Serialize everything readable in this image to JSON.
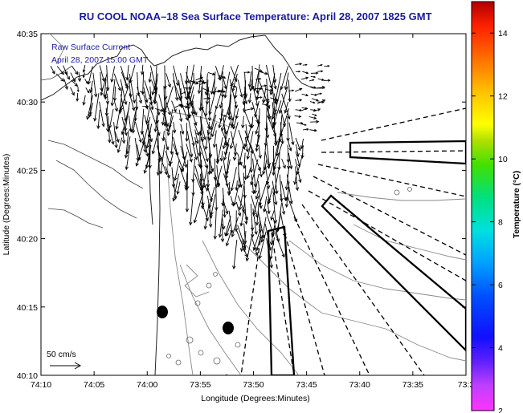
{
  "chart_data": {
    "type": "map",
    "title": "RU COOL  NOAA–18  Sea Surface Temperature:  April 28, 2007 1825 GMT",
    "annotation": [
      "Raw Surface Current",
      "April 28, 2007 15:00 GMT"
    ],
    "xlabel": "Longitude (Degrees:Minutes)",
    "ylabel": "Latitude (Degrees:Minutes)",
    "x_ticks": [
      "74:10",
      "74:05",
      "74:00",
      "73:55",
      "73:50",
      "73:45",
      "73:40",
      "73:35",
      "73:3"
    ],
    "y_ticks": [
      "40:35",
      "40:30",
      "40:25",
      "40:20",
      "40:15",
      "40:10"
    ],
    "scale_label": "50 cm/s",
    "colorbar": {
      "label": "Temperature (°C)",
      "ticks": [
        14,
        12,
        10,
        8,
        6,
        4,
        2
      ],
      "range": [
        2,
        15
      ]
    },
    "colors": {
      "title": "#1a1aa0",
      "annotation": "#1a1aa0",
      "vector": "#000000",
      "contour": "#888888"
    }
  }
}
